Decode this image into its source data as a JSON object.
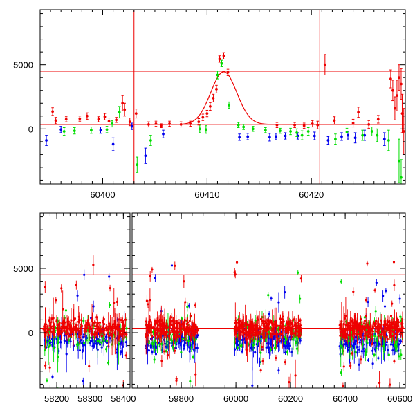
{
  "chart_data": [
    {
      "type": "scatter",
      "panel": "top",
      "xlim": [
        60394,
        60429
      ],
      "ylim": [
        -4300,
        9300
      ],
      "x_ticks": [
        60400,
        60410,
        60420
      ],
      "y_ticks": [
        0,
        5000
      ],
      "hlines": [
        4500,
        350
      ],
      "vlines": [
        60403,
        60420.8
      ],
      "model_curve": {
        "peak_x": 60411.6,
        "peak_y": 4450,
        "baseline": 350,
        "sigma": 1.25
      },
      "colors": {
        "red": "#ee0000",
        "green": "#00dd00",
        "blue": "#0000ee"
      },
      "series": [
        {
          "color": "red",
          "points": [
            [
              60395.2,
              1350,
              300
            ],
            [
              60395.5,
              650,
              250
            ],
            [
              60396.5,
              750,
              200
            ],
            [
              60397.8,
              800,
              200
            ],
            [
              60398.5,
              1000,
              250
            ],
            [
              60399.6,
              750,
              200
            ],
            [
              60400.2,
              950,
              250
            ],
            [
              60400.6,
              600,
              250
            ],
            [
              60401.3,
              700,
              200
            ],
            [
              60401.9,
              2000,
              600
            ],
            [
              60402.1,
              1500,
              500
            ],
            [
              60402.6,
              550,
              300
            ],
            [
              60403.2,
              1200,
              350
            ],
            [
              60404.4,
              350,
              200
            ],
            [
              60405.1,
              400,
              200
            ],
            [
              60405.6,
              250,
              150
            ],
            [
              60406.4,
              400,
              200
            ],
            [
              60407.5,
              350,
              200
            ],
            [
              60408.4,
              400,
              200
            ],
            [
              60409.2,
              550,
              250
            ],
            [
              60409.6,
              900,
              250
            ],
            [
              60410.0,
              1200,
              250
            ],
            [
              60410.3,
              1750,
              300
            ],
            [
              60410.6,
              2400,
              300
            ],
            [
              60410.9,
              3100,
              300
            ],
            [
              60411.2,
              5450,
              250
            ],
            [
              60411.6,
              5700,
              250
            ],
            [
              60412.0,
              4400,
              250
            ],
            [
              60416.7,
              300,
              200
            ],
            [
              60418.4,
              300,
              200
            ],
            [
              60419.3,
              250,
              200
            ],
            [
              60420.1,
              400,
              250
            ],
            [
              60420.6,
              300,
              300
            ],
            [
              60421.3,
              5000,
              800
            ],
            [
              60422.2,
              650,
              300
            ],
            [
              60424.0,
              450,
              300
            ],
            [
              60424.5,
              1300,
              400
            ],
            [
              60425.5,
              350,
              300
            ],
            [
              60426.4,
              750,
              300
            ],
            [
              60427.6,
              3900,
              700
            ],
            [
              60427.8,
              3000,
              800
            ],
            [
              60428.0,
              1600,
              900
            ],
            [
              60428.2,
              2600,
              1200
            ],
            [
              60428.4,
              4000,
              1000
            ],
            [
              60428.6,
              3500,
              1200
            ],
            [
              60428.7,
              1200,
              1500
            ],
            [
              60428.85,
              -200,
              1800
            ]
          ]
        },
        {
          "color": "green",
          "points": [
            [
              60396.3,
              -200,
              300
            ],
            [
              60397.3,
              -150,
              250
            ],
            [
              60398.9,
              -100,
              250
            ],
            [
              60400.4,
              -50,
              250
            ],
            [
              60400.9,
              400,
              250
            ],
            [
              60401.6,
              1300,
              450
            ],
            [
              60403.3,
              -2800,
              600
            ],
            [
              60404.6,
              -900,
              400
            ],
            [
              60409.3,
              0,
              300
            ],
            [
              60409.9,
              -50,
              300
            ],
            [
              60411.0,
              4200,
              300
            ],
            [
              60411.4,
              5100,
              250
            ],
            [
              60412.1,
              1850,
              250
            ],
            [
              60413.0,
              300,
              200
            ],
            [
              60413.5,
              150,
              200
            ],
            [
              60414.4,
              0,
              200
            ],
            [
              60415.6,
              -100,
              200
            ],
            [
              60417.0,
              -150,
              200
            ],
            [
              60418.0,
              -200,
              250
            ],
            [
              60418.6,
              -300,
              300
            ],
            [
              60419.1,
              -500,
              350
            ],
            [
              60419.7,
              -200,
              300
            ],
            [
              60422.3,
              -800,
              400
            ],
            [
              60423.4,
              -250,
              300
            ],
            [
              60424.9,
              -500,
              400
            ],
            [
              60425.8,
              -200,
              350
            ],
            [
              60426.3,
              -500,
              500
            ],
            [
              60427.4,
              -900,
              800
            ],
            [
              60428.4,
              -2500,
              1700
            ],
            [
              60428.6,
              -3800,
              1400
            ]
          ]
        },
        {
          "color": "blue",
          "points": [
            [
              60394.6,
              -900,
              400
            ],
            [
              60396.0,
              -50,
              250
            ],
            [
              60399.8,
              -100,
              250
            ],
            [
              60401.0,
              -1200,
              500
            ],
            [
              60402.8,
              200,
              250
            ],
            [
              60404.1,
              -2100,
              600
            ],
            [
              60405.8,
              -400,
              300
            ],
            [
              60413.1,
              -650,
              250
            ],
            [
              60413.9,
              -600,
              250
            ],
            [
              60416.0,
              -650,
              300
            ],
            [
              60416.6,
              -600,
              250
            ],
            [
              60417.5,
              -550,
              250
            ],
            [
              60418.7,
              -550,
              250
            ],
            [
              60420.3,
              -550,
              300
            ],
            [
              60421.6,
              -900,
              300
            ],
            [
              60422.9,
              -600,
              300
            ],
            [
              60423.5,
              -500,
              300
            ],
            [
              60424.2,
              -700,
              400
            ],
            [
              60425.1,
              -500,
              400
            ],
            [
              60427.0,
              -800,
              500
            ]
          ]
        }
      ]
    },
    {
      "type": "scatter",
      "panel": "bottom",
      "ylim": [
        -4300,
        9300
      ],
      "y_ticks": [
        0,
        5000
      ],
      "hlines": [
        4500,
        350
      ],
      "segments": [
        {
          "xlim": [
            58150,
            58420
          ],
          "x_ticks": [
            58200,
            58300,
            58400
          ]
        },
        {
          "xlim": [
            59620,
            60620
          ],
          "x_ticks": [
            59800,
            60000,
            60200,
            60400,
            60600
          ]
        }
      ]
    }
  ]
}
